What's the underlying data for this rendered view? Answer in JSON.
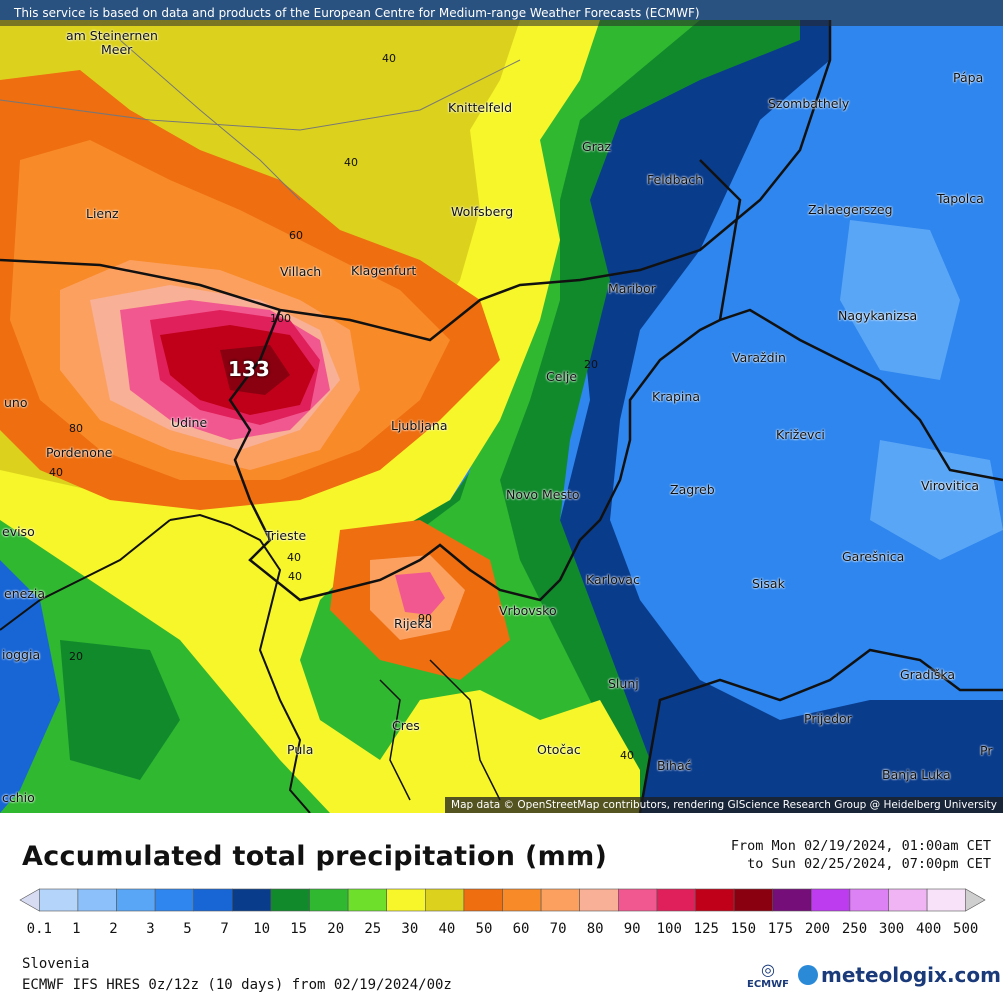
{
  "map": {
    "disclaimer": "This service is based on data and products of the European Centre for Medium-range Weather Forecasts (ECMWF)",
    "attribution": "Map data © OpenStreetMap contributors, rendering GIScience Research Group @ Heidelberg University",
    "max_value": "133",
    "cities": [
      {
        "name": "am Steinernen",
        "id": "am-steinernen"
      },
      {
        "name": "Meer",
        "id": "meer"
      },
      {
        "name": "Knittelfeld",
        "id": "knittelfeld"
      },
      {
        "name": "Graz",
        "id": "graz"
      },
      {
        "name": "Pápa",
        "id": "papa"
      },
      {
        "name": "Szombathely",
        "id": "szombathely"
      },
      {
        "name": "Feldbach",
        "id": "feldbach"
      },
      {
        "name": "Zalaegerszeg",
        "id": "zalaegerszeg"
      },
      {
        "name": "Tapolca",
        "id": "tapolca"
      },
      {
        "name": "Lienz",
        "id": "lienz"
      },
      {
        "name": "Wolfsberg",
        "id": "wolfsberg"
      },
      {
        "name": "Villach",
        "id": "villach"
      },
      {
        "name": "Klagenfurt",
        "id": "klagenfurt"
      },
      {
        "name": "Maribor",
        "id": "maribor"
      },
      {
        "name": "Nagykanizsa",
        "id": "nagykanizsa"
      },
      {
        "name": "Varaždin",
        "id": "varazdin"
      },
      {
        "name": "Celje",
        "id": "celje"
      },
      {
        "name": "Krapina",
        "id": "krapina"
      },
      {
        "name": "uno",
        "id": "uno"
      },
      {
        "name": "Udine",
        "id": "udine"
      },
      {
        "name": "Ljubljana",
        "id": "ljubljana"
      },
      {
        "name": "Križevci",
        "id": "krizevci"
      },
      {
        "name": "Pordenone",
        "id": "pordenone"
      },
      {
        "name": "Zagreb",
        "id": "zagreb"
      },
      {
        "name": "Virovitica",
        "id": "virovitica"
      },
      {
        "name": "Novo Mesto",
        "id": "novo-mesto"
      },
      {
        "name": "eviso",
        "id": "eviso"
      },
      {
        "name": "Trieste",
        "id": "trieste"
      },
      {
        "name": "Garešnica",
        "id": "garesnica"
      },
      {
        "name": "Karlovac",
        "id": "karlovac"
      },
      {
        "name": "Sisak",
        "id": "sisak"
      },
      {
        "name": "enezia",
        "id": "enezia"
      },
      {
        "name": "Vrbovsko",
        "id": "vrbovsko"
      },
      {
        "name": "Rijeka",
        "id": "rijeka"
      },
      {
        "name": "ioggia",
        "id": "ioggia"
      },
      {
        "name": "Gradiška",
        "id": "gradiska"
      },
      {
        "name": "Slunj",
        "id": "slunj"
      },
      {
        "name": "Prijedor",
        "id": "prijedor"
      },
      {
        "name": "Cres",
        "id": "cres"
      },
      {
        "name": "Pula",
        "id": "pula"
      },
      {
        "name": "Otočac",
        "id": "otocac"
      },
      {
        "name": "Bihać",
        "id": "bihac"
      },
      {
        "name": "Banja Luka",
        "id": "banja-luka"
      },
      {
        "name": "Pr",
        "id": "pr"
      },
      {
        "name": "cchio",
        "id": "cchio"
      }
    ],
    "contour_labels": [
      "40",
      "40",
      "60",
      "100",
      "80",
      "40",
      "20",
      "40",
      "40",
      "90",
      "20",
      "40"
    ]
  },
  "legend": {
    "title": "Accumulated total precipitation (mm)",
    "period_from": "From Mon 02/19/2024, 01:00am CET",
    "period_to": "to Sun 02/25/2024, 07:00pm CET",
    "ticks": [
      "0.1",
      "1",
      "2",
      "3",
      "5",
      "7",
      "10",
      "15",
      "20",
      "25",
      "30",
      "40",
      "50",
      "60",
      "70",
      "80",
      "90",
      "100",
      "125",
      "150",
      "175",
      "200",
      "250",
      "300",
      "400",
      "500"
    ],
    "colors": [
      "#d8dcf2",
      "#b4d4fa",
      "#8cc0fa",
      "#5aa6f6",
      "#2e86ee",
      "#1866d6",
      "#0a3c8c",
      "#118a2c",
      "#30b830",
      "#6ee02c",
      "#f6f62a",
      "#dcd21e",
      "#ee6e10",
      "#f88a28",
      "#fca060",
      "#f8b096",
      "#f25890",
      "#e0205a",
      "#c00018",
      "#8a0010",
      "#760e7a",
      "#be3cf0",
      "#dc82f4",
      "#f0b4f4",
      "#f8e2fa",
      "#cfcfcf"
    ],
    "region": "Slovenia",
    "model": "ECMWF IFS HRES 0z/12z (10 days) from 02/19/2024/00z",
    "ecmwf_logo_text": "ECMWF",
    "brand": "meteologix.com"
  }
}
